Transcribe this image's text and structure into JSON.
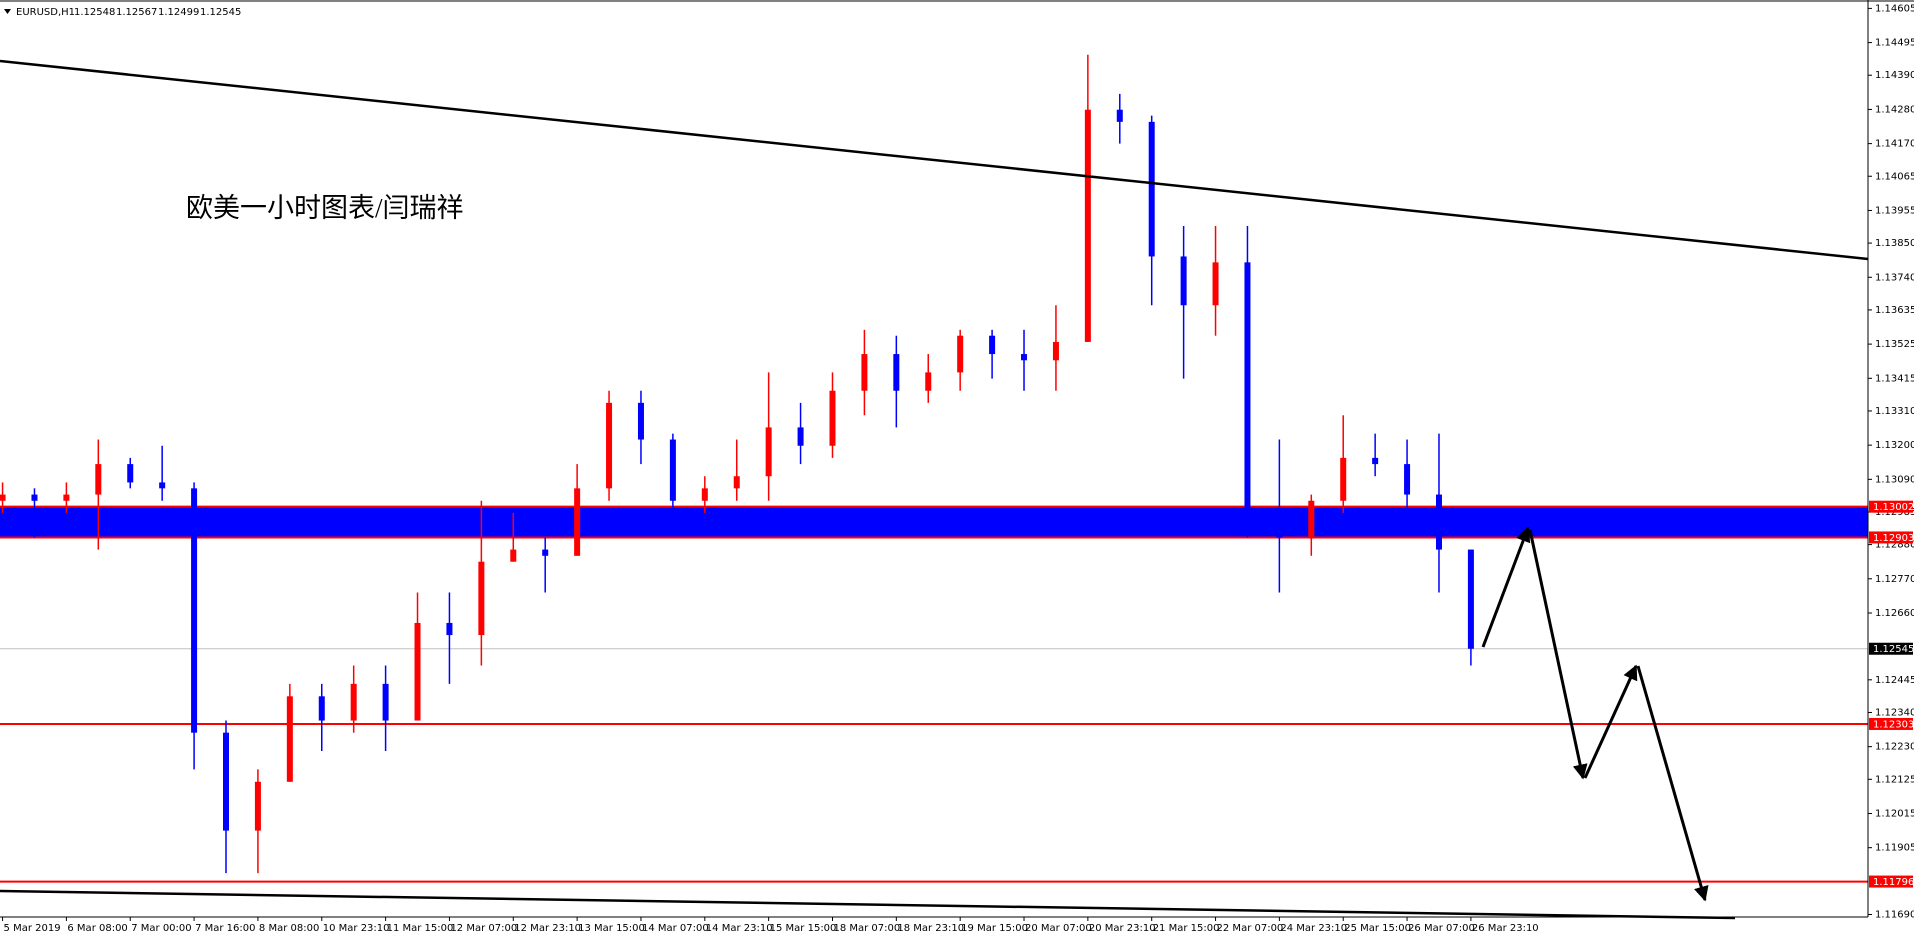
{
  "chart_data": {
    "type": "candlestick",
    "symbol": "EURUSD,H1",
    "header_ohlc": [
      1.12548,
      1.12567,
      1.12499,
      1.12545
    ],
    "annotation": "欧美一小时图表/闫瑞祥",
    "up_color": "#ff0000",
    "down_color": "#0000ff",
    "grid": false,
    "ylim": [
      1.11682,
      1.14632
    ],
    "xlim": [
      -0.08,
      58.44
    ],
    "yticks": [
      1.14605,
      1.14495,
      {
        "value": 1.1439,
        "label": "1.14390"
      },
      {
        "value": 1.1428,
        "label": "1.14280"
      },
      {
        "value": 1.1417,
        "label": "1.14170"
      },
      1.14065,
      1.13955,
      {
        "value": 1.1385,
        "label": "1.13850"
      },
      {
        "value": 1.1374,
        "label": "1.13740"
      },
      1.13635,
      1.13525,
      1.13415,
      {
        "value": 1.1331,
        "label": "1.13310"
      },
      {
        "value": 1.132,
        "label": "1.13200"
      },
      {
        "value": 1.1309,
        "label": "1.13090"
      },
      1.12985,
      {
        "value": 1.1288,
        "label": "1.12880"
      },
      {
        "value": 1.1277,
        "label": "1.12770"
      },
      {
        "value": 1.1266,
        "label": "1.12660"
      },
      1.12445,
      {
        "value": 1.1234,
        "label": "1.12340"
      },
      {
        "value": 1.1223,
        "label": "1.12230"
      },
      1.12125,
      1.12015,
      1.11905,
      {
        "value": 1.1169,
        "label": "1.11690"
      }
    ],
    "xticks": [
      {
        "value": 0,
        "label": "5 Mar 2019"
      },
      {
        "value": 2,
        "label": "6 Mar 08:00"
      },
      {
        "value": 4,
        "label": "7 Mar 00:00"
      },
      {
        "value": 6,
        "label": "7 Mar 16:00"
      },
      {
        "value": 8,
        "label": "8 Mar 08:00"
      },
      {
        "value": 10,
        "label": "10 Mar 23:10"
      },
      {
        "value": 12,
        "label": "11 Mar 15:00"
      },
      {
        "value": 14,
        "label": "12 Mar 07:00"
      },
      {
        "value": 16,
        "label": "12 Mar 23:10"
      },
      {
        "value": 18,
        "label": "13 Mar 15:00"
      },
      {
        "value": 20,
        "label": "14 Mar 07:00"
      },
      {
        "value": 22,
        "label": "14 Mar 23:10"
      },
      {
        "value": 24,
        "label": "15 Mar 15:00"
      },
      {
        "value": 26,
        "label": "18 Mar 07:00"
      },
      {
        "value": 28,
        "label": "18 Mar 23:10"
      },
      {
        "value": 30,
        "label": "19 Mar 15:00"
      },
      {
        "value": 32,
        "label": "20 Mar 07:00"
      },
      {
        "value": 34,
        "label": "20 Mar 23:10"
      },
      {
        "value": 36,
        "label": "21 Mar 15:00"
      },
      {
        "value": 38,
        "label": "22 Mar 07:00"
      },
      {
        "value": 40,
        "label": "24 Mar 23:10"
      },
      {
        "value": 42,
        "label": "25 Mar 15:00"
      },
      {
        "value": 44,
        "label": "26 Mar 07:00"
      },
      {
        "value": 46,
        "label": "26 Mar 23:10"
      }
    ],
    "levels": [
      {
        "value": 1.13002,
        "color": "#ff0000"
      },
      {
        "value": 1.12903,
        "color": "#ff0000"
      },
      {
        "value": 1.12545,
        "color": "#000000"
      },
      {
        "value": 1.12303,
        "color": "#ff0000"
      },
      {
        "value": 1.11796,
        "color": "#ff0000"
      }
    ],
    "zone_color": "#0000ff",
    "candles": [
      [
        1.13021,
        1.1308,
        1.12982,
        1.13041
      ],
      [
        1.13041,
        1.13061,
        1.12903,
        1.13021
      ],
      [
        1.13021,
        1.1308,
        1.12982,
        1.13041
      ],
      [
        1.13041,
        1.13218,
        1.12864,
        1.13139
      ],
      [
        1.13139,
        1.13159,
        1.13061,
        1.1308
      ],
      [
        1.1308,
        1.13198,
        1.13021,
        1.13061
      ],
      [
        1.13061,
        1.1308,
        1.12157,
        1.12275
      ],
      [
        1.12275,
        1.12314,
        1.11823,
        1.1196
      ],
      [
        1.1196,
        1.12157,
        1.11823,
        1.12117
      ],
      [
        1.12117,
        1.12432,
        1.12117,
        1.12392
      ],
      [
        1.12392,
        1.12432,
        1.12216,
        1.12314
      ],
      [
        1.12314,
        1.12491,
        1.12275,
        1.12432
      ],
      [
        1.12432,
        1.12491,
        1.12216,
        1.12314
      ],
      [
        1.12314,
        1.12726,
        1.12314,
        1.12628
      ],
      [
        1.12628,
        1.12726,
        1.12432,
        1.12589
      ],
      [
        1.12589,
        1.13021,
        1.12491,
        1.12825
      ],
      [
        1.12825,
        1.12982,
        1.12825,
        1.12864
      ],
      [
        1.12864,
        1.12903,
        1.12726,
        1.12844
      ],
      [
        1.12844,
        1.13139,
        1.12844,
        1.13061
      ],
      [
        1.13061,
        1.13375,
        1.13021,
        1.13336
      ],
      [
        1.13336,
        1.13375,
        1.13139,
        1.13218
      ],
      [
        1.13218,
        1.13237,
        1.12982,
        1.13021
      ],
      [
        1.13021,
        1.131,
        1.12982,
        1.13061
      ],
      [
        1.13061,
        1.13218,
        1.13021,
        1.131
      ],
      [
        1.131,
        1.13434,
        1.13021,
        1.13257
      ],
      [
        1.13257,
        1.13336,
        1.13139,
        1.13198
      ],
      [
        1.13198,
        1.13434,
        1.13159,
        1.13375
      ],
      [
        1.13375,
        1.13571,
        1.13296,
        1.13493
      ],
      [
        1.13493,
        1.13552,
        1.13257,
        1.13375
      ],
      [
        1.13375,
        1.13493,
        1.13336,
        1.13434
      ],
      [
        1.13434,
        1.13571,
        1.13375,
        1.13552
      ],
      [
        1.13552,
        1.13571,
        1.13414,
        1.13493
      ],
      [
        1.13493,
        1.13571,
        1.13375,
        1.13473
      ],
      [
        1.13473,
        1.1365,
        1.13375,
        1.13532
      ],
      [
        1.13532,
        1.14456,
        1.13532,
        1.14279
      ],
      [
        1.14279,
        1.1433,
        1.1417,
        1.1424
      ],
      [
        1.1424,
        1.1426,
        1.1365,
        1.13807
      ],
      [
        1.13807,
        1.13905,
        1.13414,
        1.1365
      ],
      [
        1.1365,
        1.13905,
        1.13552,
        1.13788
      ],
      [
        1.13788,
        1.13905,
        1.12903,
        1.12982
      ],
      [
        1.12982,
        1.13218,
        1.12726,
        1.12903
      ],
      [
        1.12903,
        1.13041,
        1.12844,
        1.13021
      ],
      [
        1.13021,
        1.13296,
        1.12982,
        1.13159
      ],
      [
        1.13159,
        1.13237,
        1.131,
        1.13139
      ],
      [
        1.13139,
        1.13218,
        1.12982,
        1.13041
      ],
      [
        1.13041,
        1.13237,
        1.12726,
        1.12864
      ],
      [
        1.12864,
        1.12864,
        1.12491,
        1.12545
      ]
    ]
  }
}
